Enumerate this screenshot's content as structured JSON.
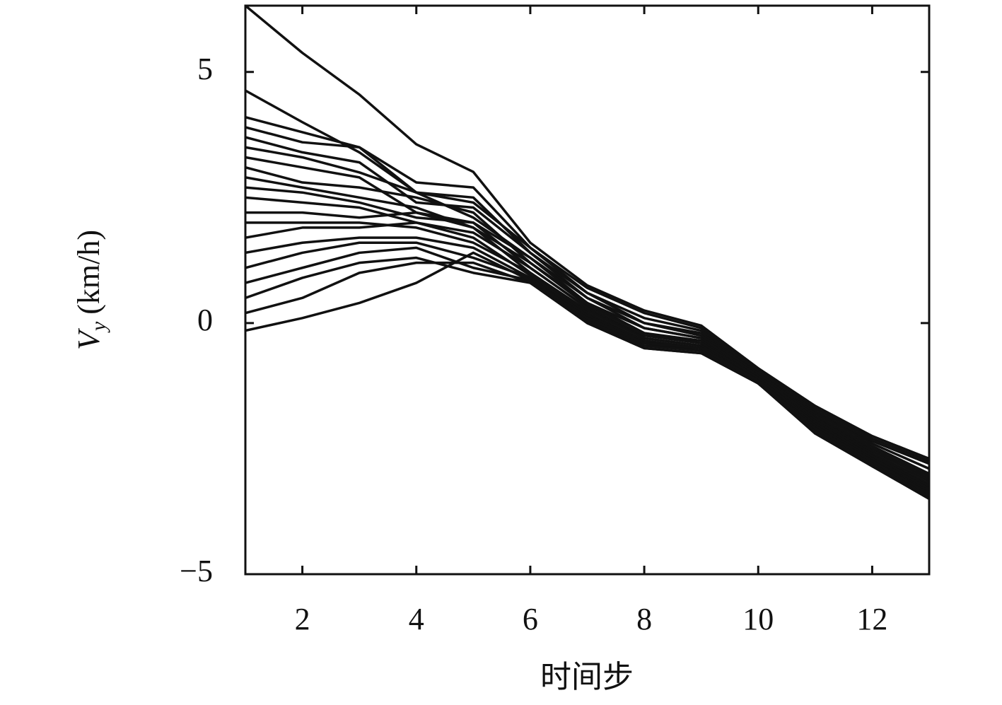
{
  "chart_data": {
    "type": "line",
    "xlabel": "时间步",
    "ylabel": {
      "main": "V",
      "sub": "y",
      "unit": "(km/h)"
    },
    "xlim": [
      1,
      13
    ],
    "xticks": [
      2,
      4,
      6,
      8,
      10,
      12
    ],
    "ylim": [
      -5,
      6.32
    ],
    "yticks": [
      {
        "value": -5,
        "label": "−5"
      },
      0,
      5
    ],
    "x": [
      1,
      2,
      3,
      4,
      5,
      6,
      7,
      8,
      9,
      10,
      11,
      12,
      13
    ],
    "series": [
      {
        "color": "#111111",
        "values": [
          6.32,
          5.38,
          4.55,
          3.56,
          3.01,
          1.6,
          0.75,
          0.25,
          -0.05,
          -0.9,
          -1.65,
          -2.25,
          -2.7
        ]
      },
      {
        "color": "#111111",
        "values": [
          4.63,
          4.0,
          3.4,
          2.6,
          2.4,
          1.5,
          0.7,
          0.2,
          -0.1,
          -0.95,
          -1.7,
          -2.3,
          -2.75
        ]
      },
      {
        "color": "#111111",
        "values": [
          4.1,
          3.8,
          3.5,
          2.8,
          2.7,
          1.5,
          0.6,
          0.1,
          -0.15,
          -0.95,
          -1.75,
          -2.35,
          -2.8
        ]
      },
      {
        "color": "#111111",
        "values": [
          3.9,
          3.6,
          3.5,
          2.6,
          2.5,
          1.4,
          0.6,
          0.0,
          -0.2,
          -1.0,
          -1.8,
          -2.4,
          -2.9
        ]
      },
      {
        "color": "#111111",
        "values": [
          3.7,
          3.4,
          3.2,
          2.4,
          2.3,
          1.4,
          0.5,
          0.0,
          -0.25,
          -1.0,
          -1.85,
          -2.45,
          -3.0
        ]
      },
      {
        "color": "#111111",
        "values": [
          3.5,
          3.3,
          3.0,
          2.6,
          2.1,
          1.3,
          0.5,
          -0.1,
          -0.3,
          -1.05,
          -1.9,
          -2.5,
          -3.05
        ]
      },
      {
        "color": "#111111",
        "values": [
          3.3,
          3.1,
          2.9,
          2.2,
          2.0,
          1.3,
          0.4,
          -0.1,
          -0.3,
          -1.05,
          -1.9,
          -2.55,
          -3.1
        ]
      },
      {
        "color": "#111111",
        "values": [
          3.1,
          2.8,
          2.7,
          2.5,
          2.2,
          1.2,
          0.4,
          -0.2,
          -0.35,
          -1.1,
          -1.95,
          -2.6,
          -3.15
        ]
      },
      {
        "color": "#111111",
        "values": [
          2.9,
          2.7,
          2.5,
          2.3,
          1.9,
          1.2,
          0.35,
          -0.2,
          -0.4,
          -1.1,
          -2.0,
          -2.65,
          -3.2
        ]
      },
      {
        "color": "#111111",
        "values": [
          2.7,
          2.6,
          2.4,
          2.1,
          2.0,
          1.1,
          0.3,
          -0.25,
          -0.4,
          -1.1,
          -2.0,
          -2.65,
          -3.25
        ]
      },
      {
        "color": "#111111",
        "values": [
          2.5,
          2.4,
          2.3,
          2.0,
          1.8,
          1.1,
          0.3,
          -0.3,
          -0.45,
          -1.15,
          -2.05,
          -2.7,
          -3.3
        ]
      },
      {
        "color": "#111111",
        "values": [
          2.2,
          2.2,
          2.1,
          2.2,
          1.9,
          1.0,
          0.25,
          -0.3,
          -0.45,
          -1.15,
          -2.05,
          -2.7,
          -3.3
        ]
      },
      {
        "color": "#111111",
        "values": [
          2.0,
          2.0,
          2.0,
          1.9,
          1.6,
          1.0,
          0.2,
          -0.35,
          -0.5,
          -1.15,
          -2.1,
          -2.75,
          -3.35
        ]
      },
      {
        "color": "#111111",
        "values": [
          1.7,
          1.9,
          1.9,
          2.0,
          1.7,
          0.95,
          0.15,
          -0.35,
          -0.5,
          -1.2,
          -2.1,
          -2.75,
          -3.4
        ]
      },
      {
        "color": "#111111",
        "values": [
          1.4,
          1.6,
          1.7,
          1.7,
          1.5,
          0.9,
          0.1,
          -0.4,
          -0.55,
          -1.2,
          -2.1,
          -2.8,
          -3.4
        ]
      },
      {
        "color": "#111111",
        "values": [
          1.1,
          1.4,
          1.6,
          1.6,
          1.3,
          0.9,
          0.05,
          -0.45,
          -0.55,
          -1.2,
          -2.15,
          -2.8,
          -3.45
        ]
      },
      {
        "color": "#111111",
        "values": [
          0.8,
          1.1,
          1.4,
          1.5,
          1.1,
          0.85,
          0.0,
          -0.5,
          -0.6,
          -1.2,
          -2.15,
          -2.85,
          -3.45
        ]
      },
      {
        "color": "#111111",
        "values": [
          0.5,
          0.9,
          1.2,
          1.3,
          1.0,
          0.8,
          0.0,
          -0.5,
          -0.6,
          -1.2,
          -2.2,
          -2.85,
          -3.5
        ]
      },
      {
        "color": "#111111",
        "values": [
          0.2,
          0.5,
          1.0,
          1.2,
          1.2,
          0.8,
          0.05,
          -0.45,
          -0.55,
          -1.2,
          -2.15,
          -2.8,
          -3.45
        ]
      },
      {
        "color": "#111111",
        "values": [
          -0.15,
          0.1,
          0.4,
          0.8,
          1.4,
          0.85,
          0.1,
          -0.4,
          -0.5,
          -1.15,
          -2.1,
          -2.75,
          -3.4
        ]
      }
    ]
  }
}
